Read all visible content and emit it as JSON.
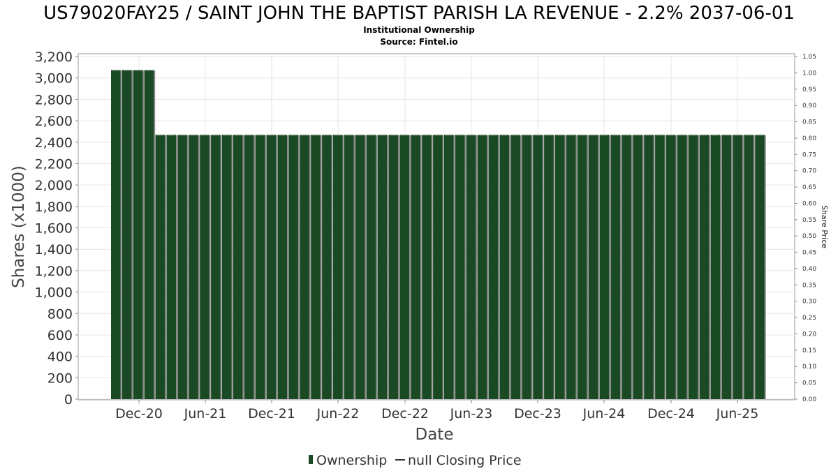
{
  "chart_data": {
    "type": "bar",
    "title": "US79020FAY25 / SAINT JOHN THE BAPTIST PARISH LA REVENUE - 2.2% 2037-06-01",
    "subtitle_lines": [
      "Institutional Ownership",
      "Source: Fintel.io"
    ],
    "xlabel": "Date",
    "ylabel": "Shares (x1000)",
    "ylabel_right": "Share Price",
    "ylim": [
      0,
      3200
    ],
    "ylim_right": [
      0,
      1.05
    ],
    "yticks": [
      "0",
      "200",
      "400",
      "600",
      "800",
      "1,000",
      "1,200",
      "1,400",
      "1,600",
      "1,800",
      "2,000",
      "2,200",
      "2,400",
      "2,600",
      "2,800",
      "3,000",
      "3,200"
    ],
    "yticks_right": [
      "0.00",
      "0.05",
      "0.10",
      "0.15",
      "0.20",
      "0.25",
      "0.30",
      "0.35",
      "0.40",
      "0.45",
      "0.50",
      "0.55",
      "0.60",
      "0.65",
      "0.70",
      "0.75",
      "0.80",
      "0.85",
      "0.90",
      "0.95",
      "1.00",
      "1.05"
    ],
    "xticks": [
      "Dec-20",
      "Jun-21",
      "Dec-21",
      "Jun-22",
      "Dec-22",
      "Jun-23",
      "Dec-23",
      "Jun-24",
      "Dec-24",
      "Jun-25"
    ],
    "series": [
      {
        "name": "Ownership",
        "color": "#1a4a24",
        "values": [
          3075,
          3075,
          3075,
          3075,
          2470,
          2470,
          2470,
          2470,
          2470,
          2470,
          2470,
          2470,
          2470,
          2470,
          2470,
          2470,
          2470,
          2470,
          2470,
          2470,
          2470,
          2470,
          2470,
          2470,
          2470,
          2470,
          2470,
          2470,
          2470,
          2470,
          2470,
          2470,
          2470,
          2470,
          2470,
          2470,
          2470,
          2470,
          2470,
          2470,
          2470,
          2470,
          2470,
          2470,
          2470,
          2470,
          2470,
          2470,
          2470,
          2470,
          2470,
          2470,
          2470,
          2470,
          2470,
          2470,
          2470,
          2470,
          2470
        ]
      }
    ],
    "legend": [
      {
        "label": "Ownership",
        "marker": "bar",
        "color": "#1a4a24"
      },
      {
        "label": "null Closing Price",
        "marker": "line",
        "color": "#333333"
      }
    ],
    "legend_position": "bottom",
    "grid": true
  }
}
